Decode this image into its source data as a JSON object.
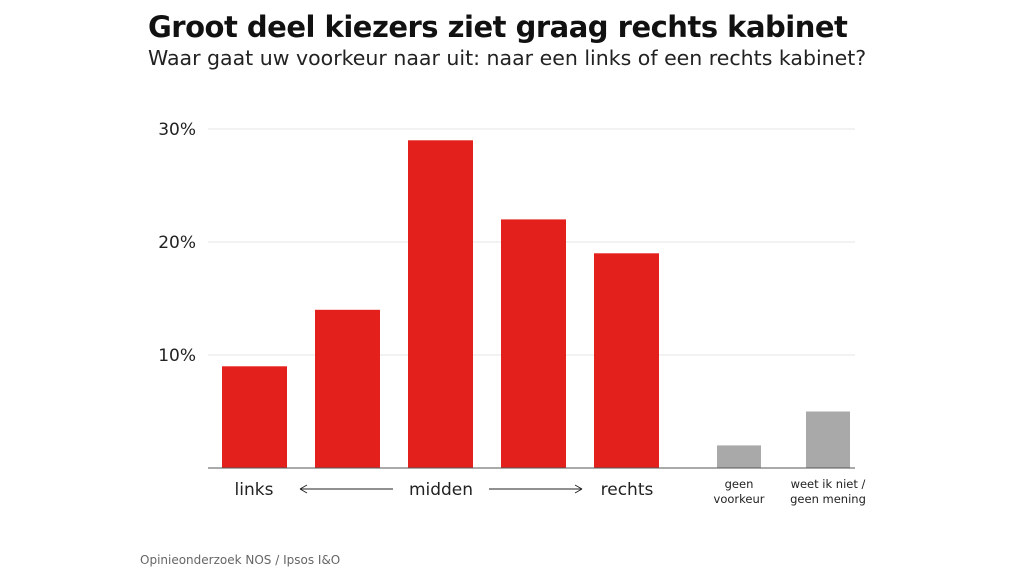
{
  "chart_data": {
    "type": "bar",
    "title": "Groot deel kiezers ziet graag rechts kabinet",
    "subtitle": "Waar gaat uw voorkeur naar uit: naar een links of een rechts kabinet?",
    "source": "Opinieonderzoek NOS / Ipsos I&O",
    "categories": [
      "links",
      "",
      "midden",
      "",
      "rechts",
      "geen voorkeur",
      "weet ik niet / geen mening"
    ],
    "values": [
      9,
      14,
      29,
      22,
      19,
      2,
      5
    ],
    "colors": [
      "#e3201b",
      "#e3201b",
      "#e3201b",
      "#e3201b",
      "#e3201b",
      "#a9a9a9",
      "#a9a9a9"
    ],
    "ylim": [
      0,
      30
    ],
    "yticks": [
      10,
      20,
      30
    ],
    "ytick_labels": [
      "10%",
      "20%",
      "30%"
    ],
    "axis_labels": {
      "left": "links",
      "mid": "midden",
      "right": "rechts"
    },
    "gray_labels": [
      [
        "geen",
        "voorkeur"
      ],
      [
        "weet ik niet /",
        "geen mening"
      ]
    ],
    "grid": true
  }
}
